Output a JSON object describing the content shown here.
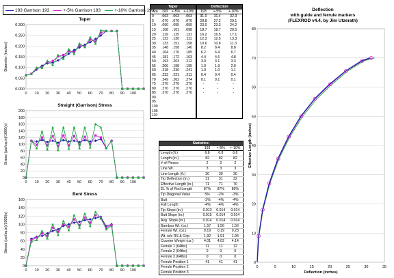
{
  "legend": {
    "items": [
      {
        "label": "193 Garrison 193",
        "color": "#2222aa",
        "marker": "diamond"
      },
      {
        "label": "+-5% Garrison 193",
        "color": "#cc22cc",
        "marker": "square"
      },
      {
        "label": "+-10% Garrison 193",
        "color": "#22aa44",
        "marker": "triangle"
      }
    ]
  },
  "chart_data": [
    {
      "type": "line",
      "title": "Taper",
      "xlabel": "",
      "ylabel": "Diameter (inches)",
      "x": [
        0,
        5,
        10,
        15,
        20,
        25,
        30,
        35,
        40,
        45,
        50,
        55,
        60,
        65,
        70,
        75,
        80,
        85,
        90,
        95,
        100,
        105,
        110
      ],
      "xticks": [
        0,
        10,
        20,
        30,
        40,
        50,
        60,
        70,
        80,
        90,
        100
      ],
      "ylim": [
        0,
        0.3
      ],
      "yticks": [
        "0.000",
        "0.050",
        "0.100",
        "0.150",
        "0.200",
        "0.250",
        "0.300"
      ],
      "series": [
        {
          "name": "193 Garrison 193",
          "values": [
            0.063,
            0.07,
            0.09,
            0.108,
            0.119,
            0.123,
            0.133,
            0.148,
            0.164,
            0.181,
            0.193,
            0.206,
            0.218,
            0.233,
            0.249,
            0.27,
            0.27,
            0.27,
            0,
            0,
            0,
            0,
            0
          ]
        },
        {
          "name": "+-5% Garrison 193",
          "values": [
            0.063,
            0.07,
            0.095,
            0.101,
            0.125,
            0.13,
            0.151,
            0.158,
            0.176,
            0.172,
            0.203,
            0.198,
            0.23,
            0.221,
            0.262,
            0.27,
            0.27,
            0.27,
            0,
            0,
            0,
            0,
            0
          ]
        },
        {
          "name": "+-10% Garrison 193",
          "values": [
            0.063,
            0.07,
            0.099,
            0.098,
            0.131,
            0.111,
            0.158,
            0.14,
            0.185,
            0.163,
            0.212,
            0.195,
            0.241,
            0.211,
            0.274,
            0.27,
            0.27,
            0.27,
            0,
            0,
            0,
            0,
            0
          ]
        }
      ]
    },
    {
      "type": "line",
      "title": "Straight (Garrison) Stress",
      "xlabel": "",
      "ylabel": "Stress (psi/sq.in)/1000(s)",
      "x": [
        0,
        5,
        10,
        15,
        20,
        25,
        30,
        35,
        40,
        45,
        50,
        55,
        60,
        65,
        70,
        75,
        80,
        85,
        90,
        95,
        100,
        105,
        110
      ],
      "xticks": [
        0,
        10,
        20,
        30,
        40,
        50,
        60,
        70,
        80,
        90,
        100
      ],
      "ylim": [
        0,
        200
      ],
      "yticks": [
        "0",
        "20",
        "40",
        "60",
        "80",
        "100",
        "120",
        "140",
        "160",
        "180",
        "200"
      ],
      "series": [
        {
          "name": "193 Garrison 193",
          "values": [
            0,
            110,
            108,
            112,
            106,
            110,
            104,
            112,
            108,
            110,
            106,
            112,
            108,
            110,
            115,
            88,
            110,
            0,
            0,
            0,
            0,
            0,
            0
          ]
        },
        {
          "name": "+-5% Garrison 193",
          "values": [
            0,
            110,
            98,
            120,
            96,
            124,
            94,
            126,
            96,
            124,
            98,
            122,
            100,
            126,
            120,
            88,
            110,
            0,
            0,
            0,
            0,
            0,
            0
          ]
        },
        {
          "name": "+-10% Garrison 193",
          "values": [
            0,
            110,
            88,
            138,
            84,
            150,
            82,
            150,
            86,
            150,
            88,
            150,
            90,
            160,
            150,
            88,
            110,
            0,
            0,
            0,
            0,
            0,
            0
          ]
        }
      ]
    },
    {
      "type": "line",
      "title": "Bent Stress",
      "xlabel": "",
      "ylabel": "Stress (psi/sq.in)/1000(s)",
      "x": [
        0,
        5,
        10,
        15,
        20,
        25,
        30,
        35,
        40,
        45,
        50,
        55,
        60,
        65,
        70,
        75,
        80,
        85,
        90,
        95,
        100,
        105,
        110
      ],
      "xticks": [
        0,
        10,
        20,
        30,
        40,
        50,
        60,
        70,
        80,
        90,
        100
      ],
      "ylim": [
        0,
        160
      ],
      "yticks": [
        "0",
        "20",
        "40",
        "60",
        "80",
        "100",
        "120",
        "140",
        "160"
      ],
      "series": [
        {
          "name": "193 Garrison 193",
          "values": [
            0,
            65,
            70,
            72,
            78,
            84,
            88,
            96,
            100,
            104,
            106,
            110,
            112,
            115,
            118,
            95,
            100,
            0,
            0,
            0,
            0,
            0,
            0
          ]
        },
        {
          "name": "+-5% Garrison 193",
          "values": [
            0,
            62,
            68,
            78,
            72,
            92,
            82,
            100,
            94,
            112,
            98,
            116,
            104,
            122,
            116,
            92,
            98,
            0,
            0,
            0,
            0,
            0,
            0
          ]
        },
        {
          "name": "+-10% Garrison 193",
          "values": [
            0,
            58,
            62,
            84,
            66,
            100,
            74,
            108,
            86,
            122,
            92,
            126,
            96,
            130,
            114,
            88,
            96,
            0,
            0,
            0,
            0,
            0,
            0
          ]
        }
      ]
    },
    {
      "type": "scatter",
      "title": "Deflection\nwith guide and ferrule markers\n(FLEXROD v4.4, by Jim Utzerath)",
      "xlabel": "Deflection (inches)",
      "ylabel": "Effective Length (inches)",
      "xlim": [
        0,
        35
      ],
      "ylim": [
        0,
        80
      ],
      "xticks": [
        "0",
        "5",
        "10",
        "15",
        "20",
        "25",
        "30",
        "35"
      ],
      "yticks": [
        "0",
        "10",
        "20",
        "30",
        "40",
        "50",
        "60",
        "70",
        "80"
      ],
      "series": [
        {
          "name": "193 Garrison 193",
          "x": [
            0,
            0.4,
            1.5,
            3.3,
            5.7,
            8.6,
            12,
            15.8,
            19.9,
            24.3,
            28.7,
            31
          ],
          "y": [
            0,
            9,
            18,
            27,
            35.5,
            43,
            50,
            56,
            61,
            65.5,
            69,
            70
          ]
        },
        {
          "name": "+-5% Garrison 193",
          "x": [
            0,
            0.4,
            1.5,
            3.3,
            5.8,
            8.7,
            12.1,
            15.9,
            20.1,
            24.4,
            28.9,
            31.4
          ],
          "y": [
            0,
            9,
            18,
            27,
            35.5,
            43,
            50,
            56,
            61,
            65.5,
            69,
            70
          ]
        },
        {
          "name": "+-10% Garrison 193",
          "x": [
            0,
            0.5,
            1.6,
            3.5,
            6,
            9,
            12.5,
            16.4,
            20.6,
            24.9,
            29.4,
            32.3
          ],
          "y": [
            0,
            9,
            18,
            27,
            35.5,
            43,
            50,
            56,
            61,
            65.5,
            69,
            70
          ]
        }
      ]
    }
  ],
  "taper_table": {
    "header": "Taper",
    "cols": [
      "Sta",
      "193",
      "+-5%",
      "+-10%"
    ],
    "rows": [
      [
        "0",
        ".063",
        ".063",
        ".063"
      ],
      [
        "5",
        ".070",
        ".070",
        ".070"
      ],
      [
        "10",
        ".090",
        ".095",
        ".099"
      ],
      [
        "15",
        ".108",
        ".101",
        ".098"
      ],
      [
        "20",
        ".119",
        ".125",
        ".131"
      ],
      [
        "25",
        ".123",
        ".130",
        ".111"
      ],
      [
        "30",
        ".133",
        ".151",
        ".158"
      ],
      [
        "35",
        ".148",
        ".158",
        ".140"
      ],
      [
        "40",
        ".164",
        ".176",
        ".185"
      ],
      [
        "45",
        ".181",
        ".172",
        ".163"
      ],
      [
        "50",
        ".193",
        ".203",
        ".212"
      ],
      [
        "55",
        ".206",
        ".198",
        ".195"
      ],
      [
        "60",
        ".218",
        ".230",
        ".241"
      ],
      [
        "65",
        ".233",
        ".221",
        ".211"
      ],
      [
        "70",
        ".249",
        ".262",
        ".274"
      ],
      [
        "75",
        ".270",
        ".270",
        ".270"
      ],
      [
        "80",
        ".270",
        ".270",
        ".270"
      ],
      [
        "85",
        ".270",
        ".270",
        ".270"
      ],
      [
        "90",
        "",
        "",
        ""
      ],
      [
        "95",
        "",
        "",
        ""
      ],
      [
        "100",
        "",
        "",
        ""
      ],
      [
        "105",
        "",
        "",
        ""
      ],
      [
        "110",
        "",
        "",
        ""
      ]
    ]
  },
  "deflection_table": {
    "header": "Deflection",
    "cols": [
      "193",
      "+-5%",
      "+-10%"
    ],
    "rows": [
      [
        "31.0",
        "31.4",
        "32.3"
      ],
      [
        "28.8",
        "27.2",
        "29.1"
      ],
      [
        "23.0",
        "23.3",
        "24.2"
      ],
      [
        "18.7",
        "18.7",
        "20.5"
      ],
      [
        "16.2",
        "16.5",
        "17.1"
      ],
      [
        "12.3",
        "12.5",
        "13.3"
      ],
      [
        "10.6",
        "10.8",
        "11.3"
      ],
      [
        "8.2",
        "8.4",
        "8.8"
      ],
      [
        "6.2",
        "6.4",
        "6.7"
      ],
      [
        "4.4",
        "4.6",
        "4.8"
      ],
      [
        "3.0",
        "3.1",
        "3.3"
      ],
      [
        "1.9",
        "1.9",
        "2.0"
      ],
      [
        "1.0",
        "1.0",
        "1.1"
      ],
      [
        "0.4",
        "0.4",
        "0.4"
      ],
      [
        "0.1",
        "0.1",
        "0.1"
      ],
      [
        "-",
        "-",
        "-"
      ],
      [
        "-",
        "-",
        "-"
      ],
      [
        "-",
        "-",
        "-"
      ],
      [
        "",
        "",
        ""
      ],
      [
        "",
        "",
        ""
      ],
      [
        "",
        "",
        ""
      ],
      [
        "",
        "",
        ""
      ],
      [
        "",
        "",
        ""
      ]
    ]
  },
  "stats": {
    "header": "Statistics:",
    "cols": [
      "",
      "193",
      "+-5%",
      "+-10%"
    ],
    "rows": [
      [
        "Length (ft.)",
        "6.8",
        "6.8",
        "6.8"
      ],
      [
        "Length (in.)",
        "82",
        "82",
        "82"
      ],
      [
        "# of Pieces",
        "2",
        "2",
        "2"
      ],
      [
        "Line Wt.",
        "3",
        "3",
        "3"
      ],
      [
        "Line Length (ft.)",
        "30",
        "30",
        "30"
      ],
      [
        "Tip Deflection (in.)",
        "31",
        "31",
        "32"
      ],
      [
        "Effective Length (in.)",
        "71",
        "71",
        "70"
      ],
      [
        "EL % of Rod Length",
        "87%",
        "87%",
        "86%"
      ],
      [
        "Tip Diagonal Value",
        "5%",
        "-2%",
        "-3%"
      ],
      [
        "Butt",
        "-3%",
        "-4%",
        "-4%"
      ],
      [
        "Full Length",
        "-4%",
        "-4%",
        "-4%"
      ],
      [
        "Tip Slope (in.)",
        "0.013",
        "0.014",
        "0.014"
      ],
      [
        "Butt Slope (in.)",
        "0.015",
        "0.014",
        "0.014"
      ],
      [
        "Avg. Slope (in.)",
        "0.014",
        "0.014",
        "0.014"
      ],
      [
        "Bamboo Wt. (oz.)",
        "1.57",
        "1.56",
        "1.56"
      ],
      [
        "Ferrule Wt. (oz.)",
        "0.19",
        "0.19",
        "0.23"
      ],
      [
        "Wt. w/o RS & Grip",
        "1.92",
        "1.91",
        "1.94"
      ],
      [
        "Counter Weight (oz.)",
        "4.01",
        "4.02",
        "4.14"
      ],
      [
        "Ferrule 1 (64ths)",
        "11",
        "11",
        "12"
      ],
      [
        "Ferrule 2 (64ths)",
        "0",
        "0",
        "0"
      ],
      [
        "Ferrule 3 (64ths)",
        "0",
        "0",
        "0"
      ],
      [
        "Ferrule Position 1",
        "41",
        "41",
        "41"
      ],
      [
        "Ferrule Position 2",
        "",
        "",
        ""
      ],
      [
        "Ferrule Position 3",
        "",
        "",
        ""
      ]
    ]
  }
}
